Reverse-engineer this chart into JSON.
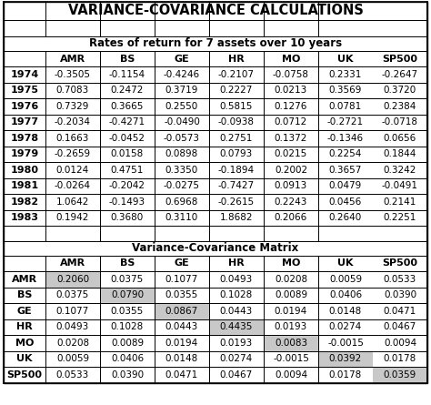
{
  "title": "VARIANCE-COVARIANCE CALCULATIONS",
  "subtitle1": "Rates of return for 7 assets over 10 years",
  "subtitle2": "Variance-Covariance Matrix",
  "columns": [
    "AMR",
    "BS",
    "GE",
    "HR",
    "MO",
    "UK",
    "SP500"
  ],
  "years": [
    "1974",
    "1975",
    "1976",
    "1977",
    "1978",
    "1979",
    "1980",
    "1981",
    "1982",
    "1983"
  ],
  "returns_data": [
    [
      -0.3505,
      -0.1154,
      -0.4246,
      -0.2107,
      -0.0758,
      0.2331,
      -0.2647
    ],
    [
      0.7083,
      0.2472,
      0.3719,
      0.2227,
      0.0213,
      0.3569,
      0.372
    ],
    [
      0.7329,
      0.3665,
      0.255,
      0.5815,
      0.1276,
      0.0781,
      0.2384
    ],
    [
      -0.2034,
      -0.4271,
      -0.049,
      -0.0938,
      0.0712,
      -0.2721,
      -0.0718
    ],
    [
      0.1663,
      -0.0452,
      -0.0573,
      0.2751,
      0.1372,
      -0.1346,
      0.0656
    ],
    [
      -0.2659,
      0.0158,
      0.0898,
      0.0793,
      0.0215,
      0.2254,
      0.1844
    ],
    [
      0.0124,
      0.4751,
      0.335,
      -0.1894,
      0.2002,
      0.3657,
      0.3242
    ],
    [
      -0.0264,
      -0.2042,
      -0.0275,
      -0.7427,
      0.0913,
      0.0479,
      -0.0491
    ],
    [
      1.0642,
      -0.1493,
      0.6968,
      -0.2615,
      0.2243,
      0.0456,
      0.2141
    ],
    [
      0.1942,
      0.368,
      0.311,
      1.8682,
      0.2066,
      0.264,
      0.2251
    ]
  ],
  "matrix_rows": [
    "AMR",
    "BS",
    "GE",
    "HR",
    "MO",
    "UK",
    "SP500"
  ],
  "matrix_data": [
    [
      0.206,
      0.0375,
      0.1077,
      0.0493,
      0.0208,
      0.0059,
      0.0533
    ],
    [
      0.0375,
      0.079,
      0.0355,
      0.1028,
      0.0089,
      0.0406,
      0.039
    ],
    [
      0.1077,
      0.0355,
      0.0867,
      0.0443,
      0.0194,
      0.0148,
      0.0471
    ],
    [
      0.0493,
      0.1028,
      0.0443,
      0.4435,
      0.0193,
      0.0274,
      0.0467
    ],
    [
      0.0208,
      0.0089,
      0.0194,
      0.0193,
      0.0083,
      -0.0015,
      0.0094
    ],
    [
      0.0059,
      0.0406,
      0.0148,
      0.0274,
      -0.0015,
      0.0392,
      0.0178
    ],
    [
      0.0533,
      0.039,
      0.0471,
      0.0467,
      0.0094,
      0.0178,
      0.0359
    ]
  ],
  "diagonal_color": "#c8c8c8",
  "bg_color": "#ffffff",
  "text_color": "#000000",
  "border_color": "#000000",
  "title_fontsize": 10.5,
  "header_fontsize": 8,
  "data_fontsize": 7.5,
  "subtitle_fontsize": 8.5
}
